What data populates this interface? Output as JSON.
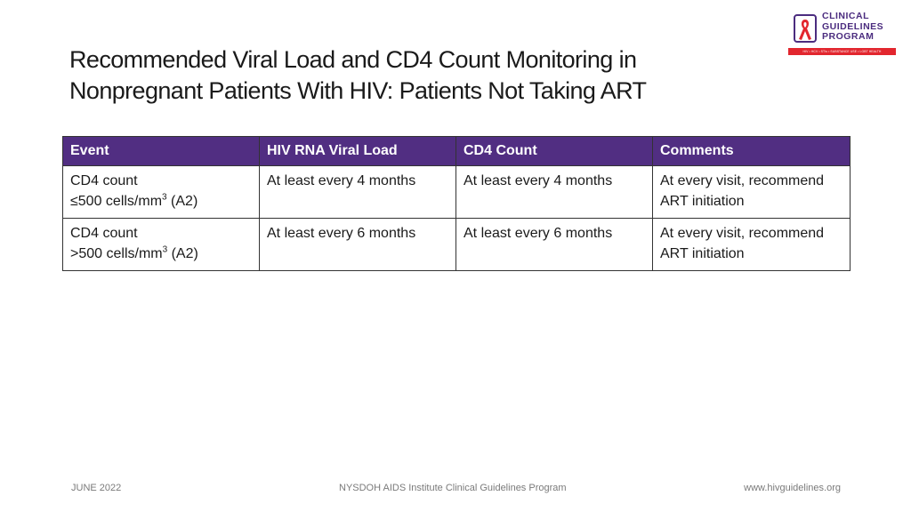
{
  "title": {
    "line1": "Recommended Viral Load and CD4 Count Monitoring in",
    "line2": "Nonpregnant Patients With HIV: Patients Not Taking ART"
  },
  "logo": {
    "line1": "CLINICAL",
    "line2": "GUIDELINES",
    "line3": "PROGRAM",
    "tagline": "HIV • HCV • STIs • SUBSTANCE USE • LGBT HEALTH",
    "brand_color": "#4b2c7f",
    "ribbon_color": "#e2262e",
    "icon": "red-ribbon-icon"
  },
  "table": {
    "header_color": "#512e82",
    "headers": [
      "Event",
      "HIV RNA Viral Load",
      "CD4 Count",
      "Comments"
    ],
    "rows": [
      {
        "event_line1": "CD4 count",
        "event_line2": "≤500 cells/mm",
        "event_sup": "3",
        "event_suffix": " (A2)",
        "viral_load": "At least every 4 months",
        "cd4": "At least every 4 months",
        "comments_line1": "At every visit, recommend",
        "comments_line2": "ART initiation"
      },
      {
        "event_line1": "CD4 count",
        "event_line2": ">500 cells/mm",
        "event_sup": "3",
        "event_suffix": " (A2)",
        "viral_load": "At least every 6 months",
        "cd4": "At least every 6 months",
        "comments_line1": "At every visit, recommend",
        "comments_line2": "ART initiation"
      }
    ]
  },
  "footer": {
    "date": "JUNE 2022",
    "center": "NYSDOH AIDS Institute Clinical Guidelines Program",
    "url": "www.hivguidelines.org"
  }
}
